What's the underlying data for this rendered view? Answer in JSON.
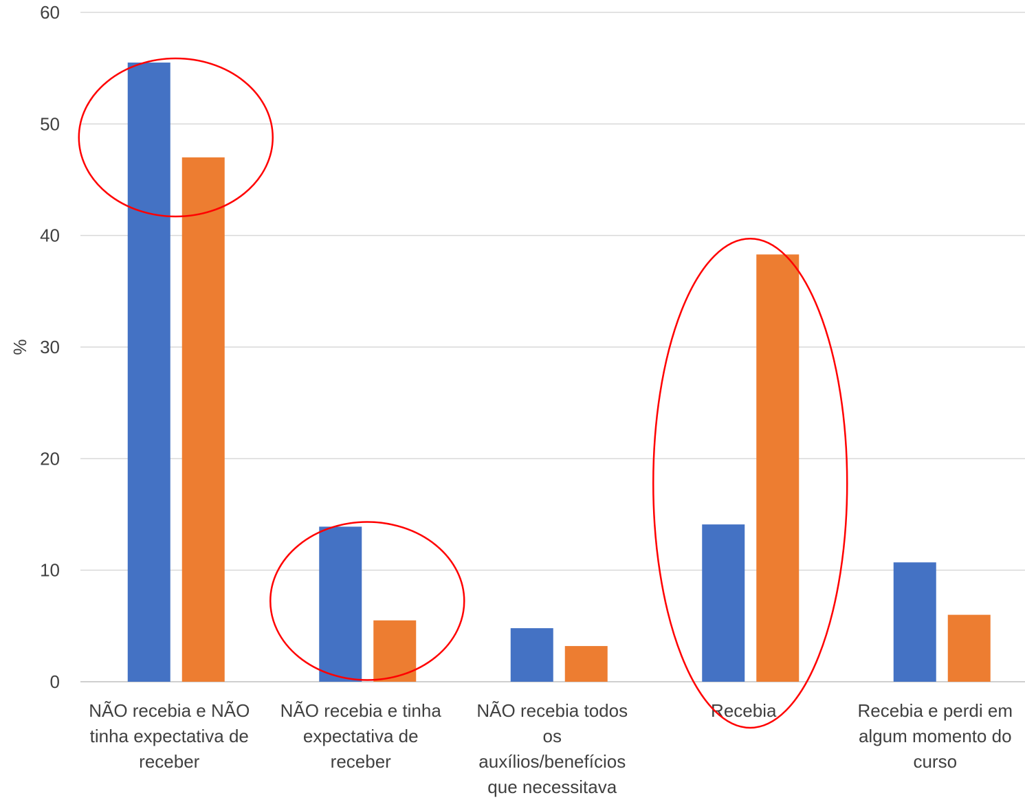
{
  "chart_data": {
    "type": "bar",
    "ylabel": "%",
    "ylim": [
      0,
      60
    ],
    "yticks": [
      0,
      10,
      20,
      30,
      40,
      50,
      60
    ],
    "grid": true,
    "categories": [
      [
        "NÃO recebia e NÃO",
        "tinha expectativa de",
        "receber"
      ],
      [
        "NÃO recebia e tinha",
        "expectativa de",
        "receber"
      ],
      [
        "NÃO recebia todos",
        "os",
        "auxílios/benefícios",
        "que necessitava"
      ],
      [
        "Recebia"
      ],
      [
        "Recebia e perdi em",
        "algum momento do",
        "curso"
      ]
    ],
    "series": [
      {
        "color": "#4472c4",
        "values": [
          55.5,
          13.9,
          4.8,
          14.1,
          10.7
        ]
      },
      {
        "color": "#ed7d31",
        "values": [
          47.0,
          5.5,
          3.2,
          38.3,
          6.0
        ]
      }
    ],
    "annotations": [
      {
        "shape": "ellipse",
        "color": "#ff0000",
        "category_index": 0
      },
      {
        "shape": "ellipse",
        "color": "#ff0000",
        "category_index": 1
      },
      {
        "shape": "ellipse",
        "color": "#ff0000",
        "category_index": 3
      }
    ]
  }
}
